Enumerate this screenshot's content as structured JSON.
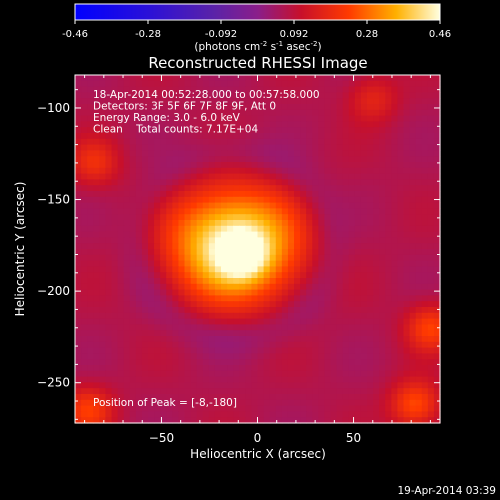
{
  "chart_data": {
    "type": "heatmap",
    "title": "Reconstructed RHESSI Image",
    "xlabel": "Heliocentric X (arcsec)",
    "ylabel": "Heliocentric Y (arcsec)",
    "xlim": [
      -95,
      95
    ],
    "ylim": [
      -272,
      -82
    ],
    "x_ticks": [
      -50,
      0,
      50
    ],
    "y_ticks": [
      -100,
      -150,
      -200,
      -250
    ],
    "colorbar": {
      "ticks": [
        "-0.46",
        "-0.28",
        "-0.092",
        "0.092",
        "0.28",
        "0.46"
      ],
      "range": [
        -0.46,
        0.46
      ],
      "unit_prefix": "(photons cm",
      "unit_exp1": "-2",
      "unit_mid": " s",
      "unit_exp2": "-1",
      "unit_mid2": " asec",
      "unit_exp3": "-2",
      "unit_suffix": ")"
    },
    "annotations": [
      "18-Apr-2014 00:52:28.000 to 00:57:58.000",
      "Detectors: 3F 5F 6F 7F 8F 9F, Att 0",
      "Energy Range: 3.0 - 6.0 keV",
      "Clean    Total counts: 7.17E+04"
    ],
    "peak_label": "Position of Peak = [-8,-180]",
    "peak": {
      "x": -8,
      "y": -180,
      "value": 0.46
    },
    "source": {
      "x0": -12,
      "y0": -175,
      "sx": 24,
      "sy": 22,
      "amp": 0.4
    },
    "background_level": 0.07,
    "noise_blobs": [
      {
        "x": 90,
        "y": -220,
        "value": 0.16
      },
      {
        "x": 82,
        "y": -262,
        "value": 0.18
      },
      {
        "x": -88,
        "y": -265,
        "value": 0.15
      },
      {
        "x": -85,
        "y": -130,
        "value": 0.12
      },
      {
        "x": 60,
        "y": -95,
        "value": 0.1
      }
    ]
  },
  "footer_timestamp": "19-Apr-2014 03:39"
}
